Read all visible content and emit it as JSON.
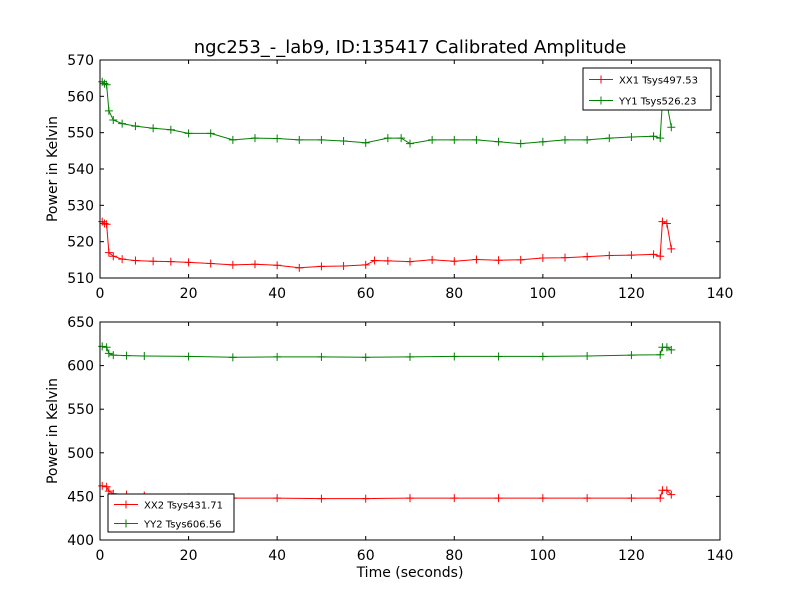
{
  "title": "ngc253_-_lab9, ID:135417 Calibrated Amplitude",
  "chart_data": [
    {
      "type": "line",
      "xlabel": "",
      "ylabel": "Power in Kelvin",
      "xlim": [
        0,
        140
      ],
      "ylim": [
        510,
        570
      ],
      "x_ticks": [
        0,
        20,
        40,
        60,
        80,
        100,
        120,
        140
      ],
      "y_ticks": [
        510,
        520,
        530,
        540,
        550,
        560,
        570
      ],
      "grid": false,
      "legend_position": "top-right",
      "marker": "+",
      "series": [
        {
          "name": "XX1 Tsys497.53",
          "color": "#ff0000",
          "points": [
            [
              0.5,
              525.5
            ],
            [
              1,
              525
            ],
            [
              1.5,
              524.8
            ],
            [
              2,
              517
            ],
            [
              3,
              516
            ],
            [
              5,
              515.2
            ],
            [
              8,
              514.8
            ],
            [
              12,
              514.6
            ],
            [
              16,
              514.5
            ],
            [
              20,
              514.3
            ],
            [
              25,
              514
            ],
            [
              30,
              513.6
            ],
            [
              35,
              513.8
            ],
            [
              40,
              513.5
            ],
            [
              45,
              512.8
            ],
            [
              50,
              513.2
            ],
            [
              55,
              513.3
            ],
            [
              60,
              513.6
            ],
            [
              62,
              514.8
            ],
            [
              65,
              514.7
            ],
            [
              70,
              514.5
            ],
            [
              75,
              515
            ],
            [
              80,
              514.6
            ],
            [
              85,
              515.1
            ],
            [
              90,
              514.9
            ],
            [
              95,
              515
            ],
            [
              100,
              515.5
            ],
            [
              105,
              515.6
            ],
            [
              110,
              515.9
            ],
            [
              115,
              516.2
            ],
            [
              120,
              516.3
            ],
            [
              125,
              516.5
            ],
            [
              126.5,
              516
            ],
            [
              127,
              525.5
            ],
            [
              128,
              525
            ],
            [
              129,
              518
            ]
          ]
        },
        {
          "name": "YY1 Tsys526.23",
          "color": "#008000",
          "points": [
            [
              0.5,
              564
            ],
            [
              1,
              563.5
            ],
            [
              1.5,
              563.2
            ],
            [
              2,
              556
            ],
            [
              3,
              553.5
            ],
            [
              5,
              552.5
            ],
            [
              8,
              551.8
            ],
            [
              12,
              551.2
            ],
            [
              16,
              550.8
            ],
            [
              20,
              549.8
            ],
            [
              25,
              549.8
            ],
            [
              30,
              548
            ],
            [
              35,
              548.5
            ],
            [
              40,
              548.4
            ],
            [
              45,
              548
            ],
            [
              50,
              548
            ],
            [
              55,
              547.7
            ],
            [
              60,
              547.2
            ],
            [
              65,
              548.5
            ],
            [
              68,
              548.5
            ],
            [
              70,
              547
            ],
            [
              75,
              548
            ],
            [
              80,
              548
            ],
            [
              85,
              548
            ],
            [
              90,
              547.5
            ],
            [
              95,
              547
            ],
            [
              100,
              547.5
            ],
            [
              105,
              548
            ],
            [
              110,
              548
            ],
            [
              115,
              548.5
            ],
            [
              120,
              548.8
            ],
            [
              125,
              549
            ],
            [
              126.5,
              548.5
            ],
            [
              127,
              558.5
            ],
            [
              128,
              558
            ],
            [
              129,
              551.5
            ]
          ]
        }
      ]
    },
    {
      "type": "line",
      "xlabel": "Time (seconds)",
      "ylabel": "Power in Kelvin",
      "xlim": [
        0,
        140
      ],
      "ylim": [
        400,
        650
      ],
      "x_ticks": [
        0,
        20,
        40,
        60,
        80,
        100,
        120,
        140
      ],
      "y_ticks": [
        400,
        450,
        500,
        550,
        600,
        650
      ],
      "grid": false,
      "legend_position": "bottom-left",
      "marker": "+",
      "series": [
        {
          "name": "XX2 Tsys431.71",
          "color": "#ff0000",
          "points": [
            [
              0.5,
              462
            ],
            [
              1.5,
              461
            ],
            [
              2,
              456
            ],
            [
              3,
              453
            ],
            [
              6,
              452
            ],
            [
              10,
              451
            ],
            [
              20,
              449
            ],
            [
              30,
              448
            ],
            [
              40,
              448
            ],
            [
              50,
              447.5
            ],
            [
              60,
              447.5
            ],
            [
              70,
              448
            ],
            [
              80,
              448
            ],
            [
              90,
              448
            ],
            [
              100,
              448
            ],
            [
              110,
              448
            ],
            [
              120,
              448
            ],
            [
              126.5,
              448
            ],
            [
              127,
              457
            ],
            [
              128,
              457
            ],
            [
              129,
              452
            ]
          ]
        },
        {
          "name": "YY2 Tsys606.56",
          "color": "#008000",
          "points": [
            [
              0.5,
              622
            ],
            [
              1.5,
              621
            ],
            [
              2,
              614
            ],
            [
              3,
              612
            ],
            [
              6,
              611.5
            ],
            [
              10,
              611
            ],
            [
              20,
              610.5
            ],
            [
              30,
              609.5
            ],
            [
              40,
              610
            ],
            [
              50,
              610
            ],
            [
              60,
              609.5
            ],
            [
              70,
              610
            ],
            [
              80,
              610.5
            ],
            [
              90,
              610.5
            ],
            [
              100,
              610.5
            ],
            [
              110,
              611
            ],
            [
              120,
              612
            ],
            [
              126.5,
              612.5
            ],
            [
              127,
              621
            ],
            [
              128,
              621
            ],
            [
              129,
              618
            ]
          ]
        }
      ]
    }
  ]
}
